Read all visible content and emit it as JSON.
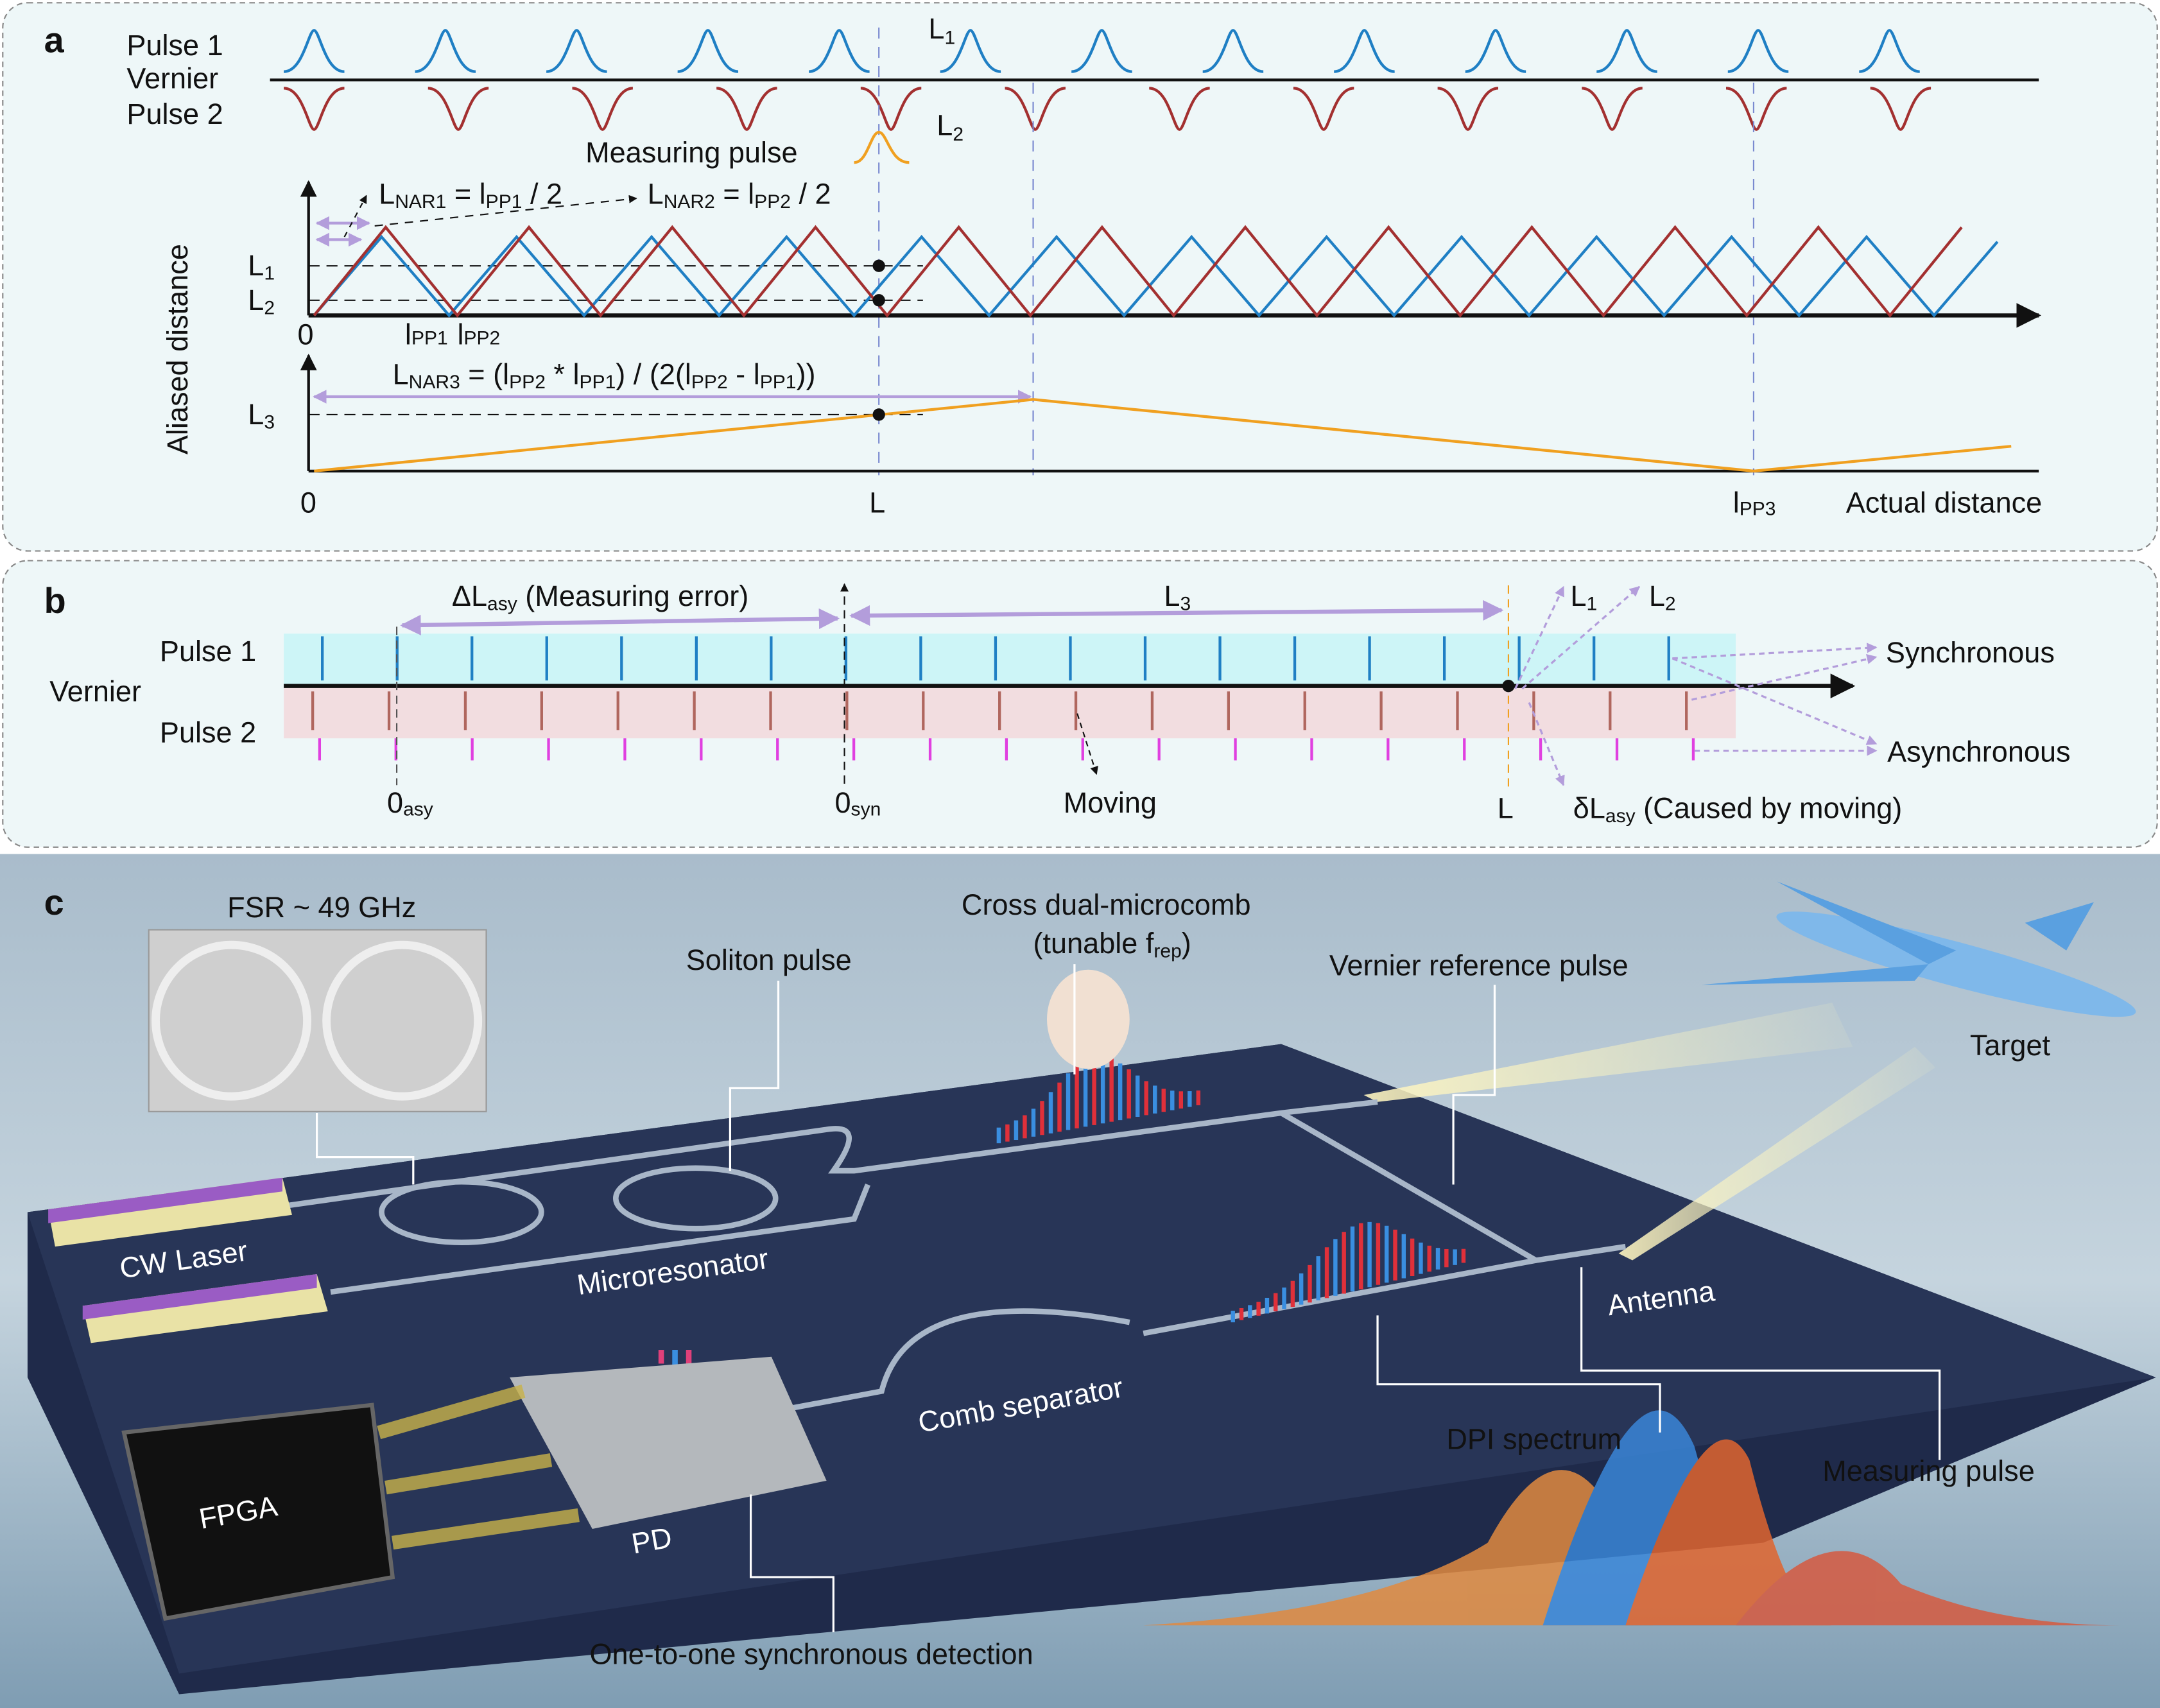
{
  "panel_a": {
    "letter": "a",
    "pulse1": "Pulse 1",
    "vernier": "Vernier",
    "pulse2": "Pulse 2",
    "L1": "L",
    "L1_sub": "1",
    "L2": "L",
    "L2_sub": "2",
    "measuring_pulse": "Measuring pulse",
    "y_axis_label": "Aliased distance",
    "lnar1": {
      "main": "L",
      "sub": "NAR1",
      "rest": " = l",
      "sub2": "PP1",
      "tail": " / 2"
    },
    "lnar2": {
      "main": "L",
      "sub": "NAR2",
      "rest": " = l",
      "sub2": "PP2",
      "tail": " / 2"
    },
    "lnar3": {
      "main": "L",
      "sub": "NAR3",
      "p1": " = (l",
      "s1": "PP2",
      "p2": " * l",
      "s2": "PP1",
      "p3": ") / (2(l",
      "s3": "PP2",
      "p4": " - l",
      "s4": "PP1",
      "p5": "))"
    },
    "tick_L1": "L",
    "tick_L1_sub": "1",
    "tick_L2": "L",
    "tick_L2_sub": "2",
    "tick_L3": "L",
    "tick_L3_sub": "3",
    "zero_top": "0",
    "lpp1": "l",
    "lpp1_sub": "PP1",
    "lpp2": "l",
    "lpp2_sub": "PP2",
    "zero_bottom": "0",
    "L": "L",
    "lpp3": "l",
    "lpp3_sub": "PP3",
    "x_axis_label": "Actual distance",
    "colors": {
      "pulse1": "#1f7fc4",
      "pulse2": "#a33030",
      "measuring": "#f0a020",
      "guide": "#b39ddb"
    }
  },
  "panel_b": {
    "letter": "b",
    "delta_label": {
      "main": "ΔL",
      "sub": "asy",
      "rest": " (Measuring error)"
    },
    "L3": "L",
    "L3_sub": "3",
    "L1": "L",
    "L1_sub": "1",
    "L2": "L",
    "L2_sub": "2",
    "pulse1": "Pulse 1",
    "vernier": "Vernier",
    "pulse2": "Pulse 2",
    "synchronous": "Synchronous",
    "asynchronous": "Asynchronous",
    "zero_asy": "0",
    "zero_asy_sub": "asy",
    "zero_syn": "0",
    "zero_syn_sub": "syn",
    "moving": "Moving",
    "L": "L",
    "delta_small": {
      "main": "δL",
      "sub": "asy",
      "rest": " (Caused by moving)"
    },
    "colors": {
      "band1": "#cdf5f7",
      "band2": "#f2dde0",
      "tick1": "#1f7fc4",
      "tick2": "#b0665e",
      "tick3": "#e040e0"
    }
  },
  "panel_c": {
    "letter": "c",
    "fsr": "FSR ~ 49 GHz",
    "soliton": "Soliton pulse",
    "cross_comb_1": "Cross dual-microcomb",
    "cross_comb_2": "(tunable f",
    "cross_comb_sub": "rep",
    "cross_comb_close": ")",
    "vernier_ref": "Vernier reference pulse",
    "target": "Target",
    "cw_laser": "CW Laser",
    "microresonator": "Microresonator",
    "antenna": "Antenna",
    "comb_separator": "Comb separator",
    "fpga": "FPGA",
    "pd": "PD",
    "dpi": "DPI spectrum",
    "measuring_pulse": "Measuring pulse",
    "detection": "One-to-one synchronous detection"
  }
}
